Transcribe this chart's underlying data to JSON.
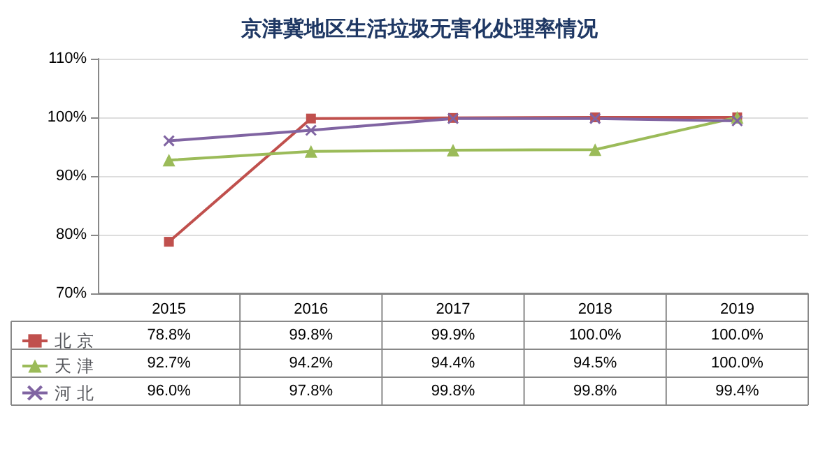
{
  "chart_data": {
    "type": "line",
    "title": "京津冀地区生活垃圾无害化处理率情况",
    "categories": [
      "2015",
      "2016",
      "2017",
      "2018",
      "2019"
    ],
    "series": [
      {
        "name": "北 京",
        "color": "#c0504d",
        "marker": "square",
        "values": [
          78.8,
          99.8,
          99.9,
          100.0,
          100.0
        ],
        "value_labels": [
          "78.8%",
          "99.8%",
          "99.9%",
          "100.0%",
          "100.0%"
        ]
      },
      {
        "name": "天 津",
        "color": "#9bbb59",
        "marker": "triangle",
        "values": [
          92.7,
          94.2,
          94.4,
          94.5,
          100.0
        ],
        "value_labels": [
          "92.7%",
          "94.2%",
          "94.4%",
          "94.5%",
          "100.0%"
        ]
      },
      {
        "name": "河 北",
        "color": "#8064a2",
        "marker": "cross",
        "values": [
          96.0,
          97.8,
          99.8,
          99.8,
          99.4
        ],
        "value_labels": [
          "96.0%",
          "97.8%",
          "99.8%",
          "99.8%",
          "99.4%"
        ]
      }
    ],
    "ylim": [
      70,
      110
    ],
    "yticks": [
      {
        "value": 70,
        "label": "70%"
      },
      {
        "value": 80,
        "label": "80%"
      },
      {
        "value": 90,
        "label": "90%"
      },
      {
        "value": 100,
        "label": "100%"
      },
      {
        "value": 110,
        "label": "110%"
      }
    ],
    "grid": "y",
    "legend": "bottom left"
  }
}
